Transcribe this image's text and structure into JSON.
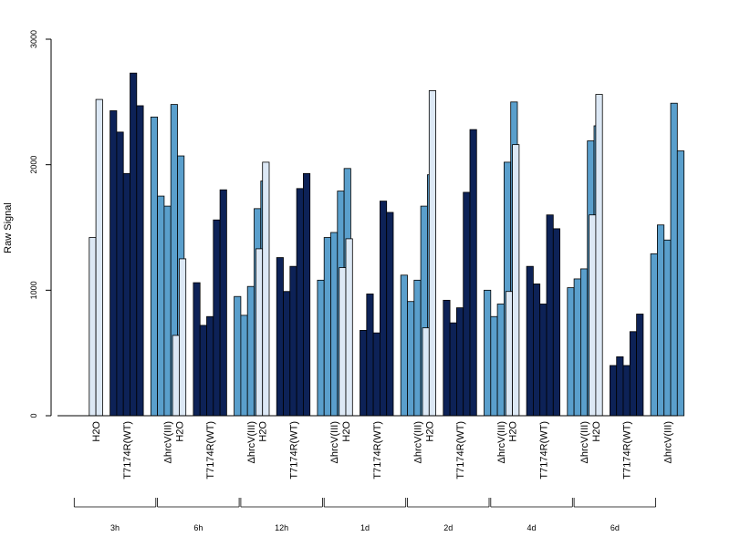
{
  "chart_data": {
    "type": "bar",
    "ylabel": "Raw Signal",
    "ylim": [
      0,
      3000
    ],
    "yticks": [
      "0",
      "1000",
      "2000",
      "3000"
    ],
    "grid": false,
    "colors": {
      "H2O": "#dce8f5",
      "T7174R(WT)": "#0d2257",
      "ΔhrcV(III)": "#5a9fcc"
    },
    "groups": [
      "H2O",
      "T7174R(WT)",
      "ΔhrcV(III)"
    ],
    "timepoints": [
      {
        "label": "3h",
        "values": {
          "H2O": [
            1420,
            2520
          ],
          "T7174R(WT)": [
            2430,
            2260,
            1930,
            2730,
            2470
          ],
          "ΔhrcV(III)": [
            2380,
            1750,
            1670,
            2480,
            2070
          ]
        }
      },
      {
        "label": "6h",
        "values": {
          "H2O": [
            640,
            1250
          ],
          "T7174R(WT)": [
            1060,
            720,
            790,
            1560,
            1800
          ],
          "ΔhrcV(III)": [
            950,
            800,
            1030,
            1650,
            1870
          ]
        }
      },
      {
        "label": "12h",
        "values": {
          "H2O": [
            1330,
            2020
          ],
          "T7174R(WT)": [
            1260,
            990,
            1190,
            1810,
            1930
          ],
          "ΔhrcV(III)": [
            1080,
            1420,
            1460,
            1790,
            1970
          ]
        }
      },
      {
        "label": "1d",
        "values": {
          "H2O": [
            1180,
            1410
          ],
          "T7174R(WT)": [
            680,
            970,
            660,
            1710,
            1620
          ],
          "ΔhrcV(III)": [
            1120,
            910,
            1080,
            1670,
            1920
          ]
        }
      },
      {
        "label": "2d",
        "values": {
          "H2O": [
            700,
            2590
          ],
          "T7174R(WT)": [
            920,
            740,
            860,
            1780,
            2280
          ],
          "ΔhrcV(III)": [
            1000,
            790,
            890,
            2020,
            2500
          ]
        }
      },
      {
        "label": "4d",
        "values": {
          "H2O": [
            990,
            2160
          ],
          "T7174R(WT)": [
            1190,
            1050,
            890,
            1600,
            1490
          ],
          "ΔhrcV(III)": [
            1020,
            1090,
            1170,
            2190,
            2310
          ]
        }
      },
      {
        "label": "6d",
        "values": {
          "H2O": [
            1600,
            2560
          ],
          "T7174R(WT)": [
            400,
            470,
            400,
            670,
            810
          ],
          "ΔhrcV(III)": [
            1290,
            1520,
            1400,
            2490,
            2110
          ]
        }
      }
    ]
  }
}
